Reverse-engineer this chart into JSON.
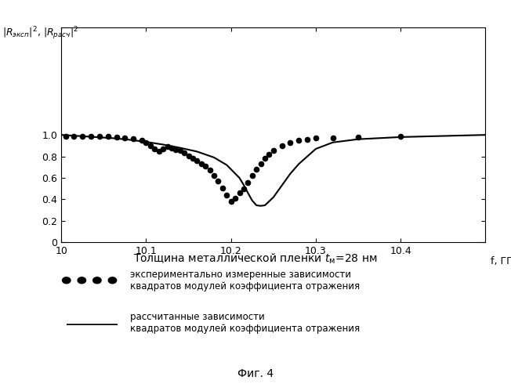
{
  "title_xlabel": "f, ГГц",
  "xlabel_below": "Толщина металлической пленки tм=28 нм",
  "xlim": [
    10.0,
    10.5
  ],
  "ylim": [
    0.0,
    2.0
  ],
  "xticks": [
    10.0,
    10.1,
    10.2,
    10.3,
    10.4
  ],
  "yticks": [
    0,
    0.2,
    0.4,
    0.6,
    0.8,
    1.0
  ],
  "curve_color": "#000000",
  "dot_color": "#000000",
  "legend_dot_label": "экспериментально измеренные зависимости\nквадратов модулей коэффициента отражения",
  "legend_line_label": "рассчитанные зависимости\nквадратов модулей коэффициента отражения",
  "fig_caption": "Фиг. 4",
  "figsize": [
    6.52,
    4.99
  ],
  "dpi": 100,
  "curve_x": [
    10.0,
    10.02,
    10.04,
    10.06,
    10.08,
    10.1,
    10.12,
    10.14,
    10.16,
    10.18,
    10.195,
    10.21,
    10.215,
    10.22,
    10.225,
    10.23,
    10.235,
    10.24,
    10.25,
    10.26,
    10.27,
    10.28,
    10.3,
    10.32,
    10.35,
    10.4,
    10.45,
    10.5
  ],
  "curve_y": [
    1.0,
    0.99,
    0.98,
    0.97,
    0.955,
    0.935,
    0.91,
    0.88,
    0.845,
    0.79,
    0.72,
    0.6,
    0.535,
    0.46,
    0.39,
    0.345,
    0.34,
    0.345,
    0.42,
    0.53,
    0.64,
    0.73,
    0.87,
    0.93,
    0.96,
    0.98,
    0.99,
    1.0
  ],
  "dots_x": [
    10.005,
    10.015,
    10.025,
    10.035,
    10.045,
    10.055,
    10.065,
    10.075,
    10.085,
    10.095,
    10.1,
    10.105,
    10.11,
    10.115,
    10.12,
    10.125,
    10.13,
    10.135,
    10.14,
    10.145,
    10.15,
    10.155,
    10.16,
    10.165,
    10.17,
    10.175,
    10.18,
    10.185,
    10.19,
    10.195,
    10.2,
    10.205,
    10.21,
    10.215,
    10.22,
    10.225,
    10.23,
    10.235,
    10.24,
    10.245,
    10.25,
    10.26,
    10.27,
    10.28,
    10.29,
    10.3,
    10.32,
    10.35,
    10.4
  ],
  "dots_y": [
    0.99,
    0.99,
    0.99,
    0.99,
    0.985,
    0.985,
    0.98,
    0.975,
    0.965,
    0.95,
    0.93,
    0.9,
    0.87,
    0.845,
    0.87,
    0.895,
    0.875,
    0.865,
    0.855,
    0.83,
    0.805,
    0.78,
    0.76,
    0.735,
    0.71,
    0.67,
    0.62,
    0.57,
    0.505,
    0.44,
    0.38,
    0.41,
    0.465,
    0.5,
    0.56,
    0.625,
    0.68,
    0.73,
    0.78,
    0.82,
    0.855,
    0.9,
    0.93,
    0.95,
    0.96,
    0.97,
    0.975,
    0.98,
    0.985
  ]
}
